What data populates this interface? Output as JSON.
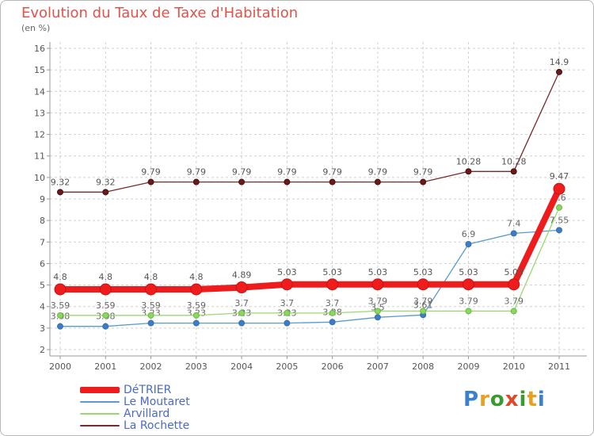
{
  "title": "Evolution du Taux de Taxe d'Habitation",
  "unit_label": "(en %)",
  "brand": {
    "letters": [
      "P",
      "r",
      "o",
      "x",
      "i",
      "t",
      "i"
    ],
    "colors": [
      "#3a7fd0",
      "#e8a020",
      "#3a9a30",
      "#e04828",
      "#3a9a30",
      "#e8a020",
      "#3a7fd0"
    ]
  },
  "chart_data": {
    "type": "line",
    "title": "Evolution du Taux de Taxe d'Habitation",
    "ylabel": "(en %)",
    "xlabel": "",
    "ylim": [
      2,
      16
    ],
    "yticks": [
      2,
      3,
      4,
      5,
      6,
      7,
      8,
      9,
      10,
      11,
      12,
      13,
      14,
      15,
      16
    ],
    "grid": true,
    "legend_position": "bottom-left",
    "x": [
      "2000",
      "2001",
      "2002",
      "2003",
      "2004",
      "2005",
      "2006",
      "2007",
      "2008",
      "2009",
      "2010",
      "2011"
    ],
    "series": [
      {
        "name": "La Rochette",
        "color": "#7a2a2a",
        "values": [
          9.32,
          9.32,
          9.79,
          9.79,
          9.79,
          9.79,
          9.79,
          9.79,
          9.79,
          10.28,
          10.28,
          14.9
        ],
        "labels": [
          "9.32",
          "9.32",
          "9.79",
          "9.79",
          "9.79",
          "9.79",
          "9.79",
          "9.79",
          "9.79",
          "10.28",
          "10.28",
          "14.9"
        ]
      },
      {
        "name": "Le Moutaret",
        "color": "#5a9ad0",
        "values": [
          3.08,
          3.08,
          3.23,
          3.23,
          3.23,
          3.23,
          3.28,
          3.5,
          3.61,
          6.9,
          7.4,
          7.55
        ],
        "labels": [
          "3.08",
          "3.08",
          "3.23",
          "3.23",
          "3.23",
          "3.23",
          "3.28",
          "3.5",
          "3.61",
          "6.9",
          "7.4",
          "7.55"
        ]
      },
      {
        "name": "Arvillard",
        "color": "#9ad870",
        "values": [
          3.59,
          3.59,
          3.59,
          3.59,
          3.7,
          3.7,
          3.7,
          3.79,
          3.79,
          3.79,
          3.79,
          8.6
        ],
        "labels": [
          "3.59",
          "3.59",
          "3.59",
          "3.59",
          "3.7",
          "3.7",
          "3.7",
          "3.79",
          "3.79",
          "3.79",
          "3.79",
          "8.6"
        ]
      },
      {
        "name": "DéTRIER",
        "color": "#ee1c1c",
        "values": [
          4.8,
          4.8,
          4.8,
          4.8,
          4.89,
          5.03,
          5.03,
          5.03,
          5.03,
          5.03,
          5.03,
          9.47
        ],
        "labels": [
          "4.8",
          "4.8",
          "4.8",
          "4.8",
          "4.89",
          "5.03",
          "5.03",
          "5.03",
          "5.03",
          "5.03",
          "5.03",
          "9.47"
        ]
      }
    ],
    "legend_order": [
      "DéTRIER",
      "Le Moutaret",
      "Arvillard",
      "La Rochette"
    ]
  }
}
